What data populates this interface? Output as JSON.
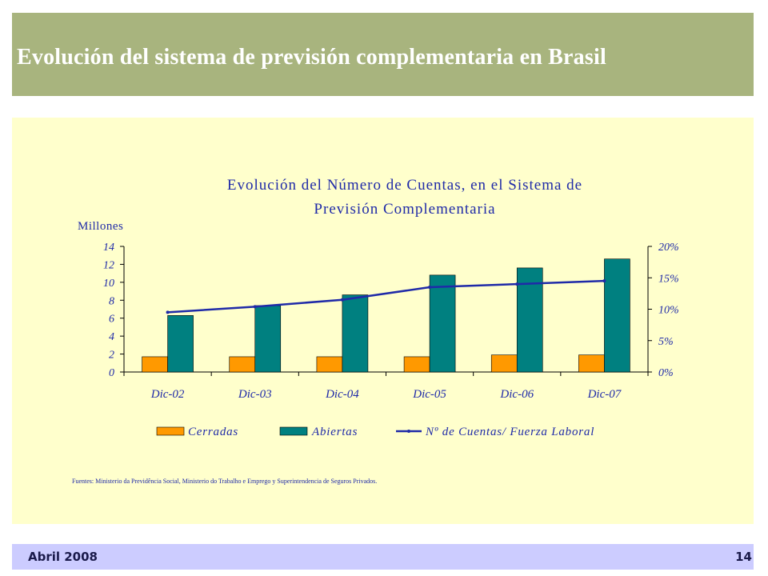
{
  "slide": {
    "title": "Evolución del sistema de previsión complementaria en Brasil",
    "date": "Abril 2008",
    "page": "14"
  },
  "colors": {
    "header_bg": "#a8b47e",
    "panel_bg": "#ffffcc",
    "footer_bg": "#ccccff",
    "cerradas": "#ff9900",
    "abiertas": "#008080",
    "ratio_line": "#1f2aa8",
    "text": "#1f2aa8"
  },
  "chart_data": {
    "type": "bar",
    "title_lines": [
      "Evolución del Número de Cuentas, en el Sistema de",
      "Previsión Complementaria"
    ],
    "ylabel": "Millones",
    "categories": [
      "Dic-02",
      "Dic-03",
      "Dic-04",
      "Dic-05",
      "Dic-06",
      "Dic-07"
    ],
    "ylim": [
      0,
      14
    ],
    "yticks": [
      "0",
      "2",
      "4",
      "6",
      "8",
      "10",
      "12",
      "14"
    ],
    "y2lim": [
      0,
      20
    ],
    "y2ticks": [
      "0%",
      "5%",
      "10%",
      "15%",
      "20%"
    ],
    "series": [
      {
        "name": "Cerradas",
        "type": "bar",
        "axis": "left",
        "values": [
          1.7,
          1.7,
          1.7,
          1.7,
          1.9,
          1.9
        ]
      },
      {
        "name": "Abiertas",
        "type": "bar",
        "axis": "left",
        "values": [
          6.3,
          7.4,
          8.6,
          10.8,
          11.6,
          12.6
        ]
      },
      {
        "name": "Nº de Cuentas/ Fuerza Laboral",
        "type": "line",
        "axis": "right",
        "values": [
          9.5,
          10.4,
          11.5,
          13.5,
          14.0,
          14.5
        ]
      }
    ],
    "legend_position": "bottom",
    "source": "Fuentes: Ministerio da Previdência Social, Ministerio do Trabalho e Emprego  y Superintendencia de Seguros Privados."
  }
}
